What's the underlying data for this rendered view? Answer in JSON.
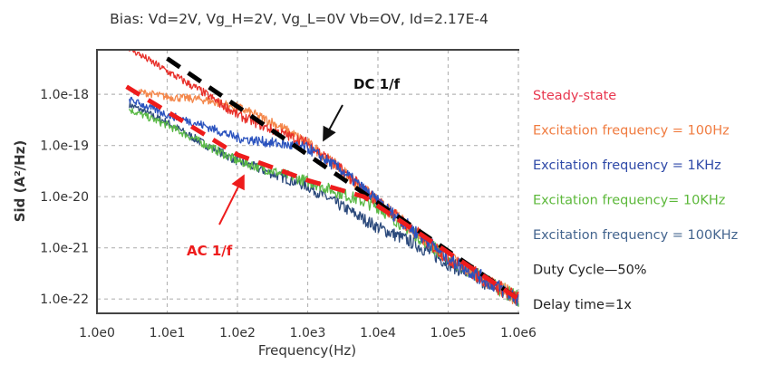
{
  "chart_data": {
    "type": "line",
    "title": "Bias: Vd=2V, Vg_H=2V, Vg_L=0V Vb=OV, Id=2.17E-4",
    "xlabel": "Frequency(Hz)",
    "ylabel": "Sid (A²/Hz)",
    "xscale": "log",
    "yscale": "log",
    "xlim_log10": [
      0,
      6
    ],
    "ylim_log10": [
      -22.28,
      -17.13
    ],
    "grid": true,
    "x_ticks": [
      {
        "value_log10": 0,
        "label": "1.0e0"
      },
      {
        "value_log10": 1,
        "label": "1.0e1"
      },
      {
        "value_log10": 2,
        "label": "1.0e2"
      },
      {
        "value_log10": 3,
        "label": "1.0e3"
      },
      {
        "value_log10": 4,
        "label": "1.0e4"
      },
      {
        "value_log10": 5,
        "label": "1.0e5"
      },
      {
        "value_log10": 6,
        "label": "1.0e6"
      }
    ],
    "y_ticks": [
      {
        "value_log10": -18,
        "label": "1.0e-18"
      },
      {
        "value_log10": -19,
        "label": "1.0e-19"
      },
      {
        "value_log10": -20,
        "label": "1.0e-20"
      },
      {
        "value_log10": -21,
        "label": "1.0e-21"
      },
      {
        "value_log10": -22,
        "label": "1.0e-22"
      }
    ],
    "legend_position": "right",
    "series": [
      {
        "name": "Steady-state",
        "color": "#e8302a",
        "legend_color": "#e8374f",
        "log10_x": [
          0.46,
          1.0,
          1.5,
          2.0,
          2.5,
          3.0,
          3.5,
          4.0,
          4.5,
          5.0,
          5.5,
          6.0
        ],
        "log10_y": [
          -17.1,
          -17.55,
          -17.95,
          -18.4,
          -18.7,
          -18.95,
          -19.5,
          -20.1,
          -20.65,
          -21.2,
          -21.6,
          -22.0
        ]
      },
      {
        "name": "Excitation frequency = 100Hz",
        "color": "#f4874b",
        "legend_color": "#f07b3f",
        "log10_x": [
          0.6,
          1.0,
          1.5,
          2.0,
          2.5,
          3.0,
          3.5,
          4.0,
          4.5,
          5.0,
          5.5,
          6.0
        ],
        "log10_y": [
          -17.95,
          -18.05,
          -18.1,
          -18.25,
          -18.55,
          -18.95,
          -19.5,
          -20.1,
          -20.65,
          -21.2,
          -21.6,
          -22.0
        ]
      },
      {
        "name": "Excitation frequency = 1KHz",
        "color": "#2a52be",
        "legend_color": "#2f4aa8",
        "log10_x": [
          0.46,
          1.0,
          1.5,
          2.0,
          2.5,
          3.0,
          3.5,
          4.0,
          4.5,
          5.0,
          5.5,
          6.0
        ],
        "log10_y": [
          -18.1,
          -18.4,
          -18.6,
          -18.85,
          -18.95,
          -19.05,
          -19.5,
          -20.1,
          -20.65,
          -21.2,
          -21.6,
          -22.0
        ]
      },
      {
        "name": "Excitation frequency= 10KHz",
        "color": "#5ab946",
        "legend_color": "#5cb83a",
        "log10_x": [
          0.46,
          1.0,
          1.5,
          2.0,
          2.5,
          3.0,
          3.5,
          4.0,
          4.5,
          5.0,
          5.5,
          6.0
        ],
        "log10_y": [
          -18.3,
          -18.6,
          -18.95,
          -19.3,
          -19.5,
          -19.7,
          -19.95,
          -20.2,
          -20.7,
          -21.2,
          -21.6,
          -22.0
        ]
      },
      {
        "name": "Excitation frequency = 100KHz",
        "color": "#2c4a7c",
        "legend_color": "#44658f",
        "log10_x": [
          0.46,
          1.0,
          1.5,
          2.0,
          2.5,
          3.0,
          3.5,
          4.0,
          4.5,
          5.0,
          5.5,
          6.0
        ],
        "log10_y": [
          -18.2,
          -18.55,
          -18.95,
          -19.3,
          -19.55,
          -19.8,
          -20.2,
          -20.6,
          -20.9,
          -21.3,
          -21.65,
          -22.0
        ]
      }
    ],
    "fit_lines": [
      {
        "name": "DC 1/f",
        "color": "#000000",
        "log10_x": [
          1.0,
          6.0
        ],
        "log10_y": [
          -17.3,
          -22.0
        ]
      },
      {
        "name": "AC 1/f",
        "color": "#ee1c1c",
        "log10_x": [
          0.42,
          2.0,
          3.0,
          3.8,
          6.0
        ],
        "log10_y": [
          -17.85,
          -19.18,
          -19.68,
          -20.0,
          -22.0
        ]
      }
    ],
    "annotations": [
      {
        "text": "DC 1/f",
        "color": "#111111",
        "arrow_from_log10": [
          2.1,
          -18.75
        ],
        "arrow_to_log10": [
          2.4,
          -18.95
        ]
      },
      {
        "text": "AC 1/f",
        "color": "#ee1c1c",
        "arrow_from_log10": [
          1.35,
          -20.4
        ],
        "arrow_to_log10": [
          1.7,
          -19.6
        ]
      }
    ],
    "legend_notes": [
      "Duty Cycle—50%",
      "Delay time=1x"
    ]
  }
}
